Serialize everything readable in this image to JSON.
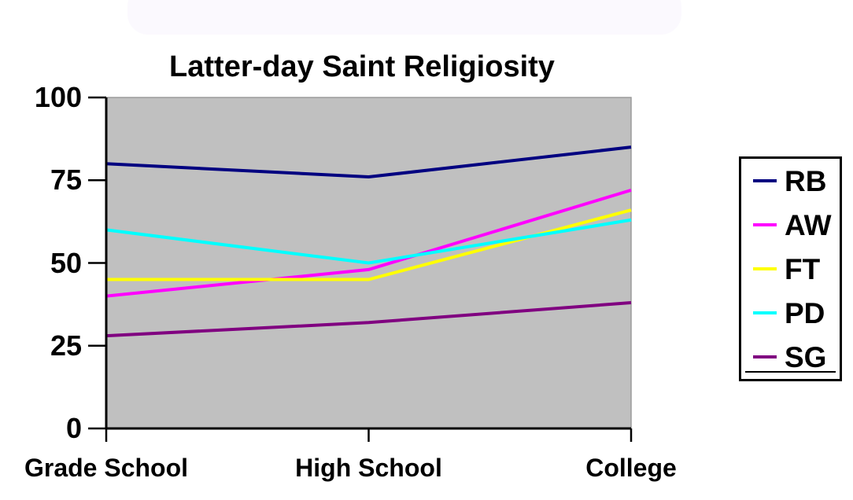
{
  "title": "Latter-day Saint Religiosity",
  "colors": {
    "plot_background": "#C0C0C0",
    "plot_border": "#9B9B9B",
    "axis": "#000000",
    "series": {
      "RB": "#000080",
      "AW": "#FF00FF",
      "FT": "#FFFF00",
      "PD": "#00FFFF",
      "SG": "#800080"
    }
  },
  "chart_data": {
    "type": "line",
    "title": "Latter-day Saint Religiosity",
    "categories": [
      "Grade School",
      "High School",
      "College"
    ],
    "series": [
      {
        "name": "RB",
        "color": "#000080",
        "values": [
          80,
          76,
          85
        ]
      },
      {
        "name": "AW",
        "color": "#FF00FF",
        "values": [
          40,
          48,
          72
        ]
      },
      {
        "name": "FT",
        "color": "#FFFF00",
        "values": [
          45,
          45,
          66
        ]
      },
      {
        "name": "PD",
        "color": "#00FFFF",
        "values": [
          60,
          50,
          63
        ]
      },
      {
        "name": "SG",
        "color": "#800080",
        "values": [
          28,
          32,
          38
        ]
      }
    ],
    "xlabel": "",
    "ylabel": "",
    "ylim": [
      0,
      100
    ],
    "yticks": [
      0,
      25,
      50,
      75,
      100
    ],
    "grid": false,
    "markers": false,
    "legend_position": "right",
    "plot_background": "#C0C0C0"
  },
  "legend": {
    "entries": [
      "RB",
      "AW",
      "FT",
      "PD",
      "SG"
    ]
  }
}
